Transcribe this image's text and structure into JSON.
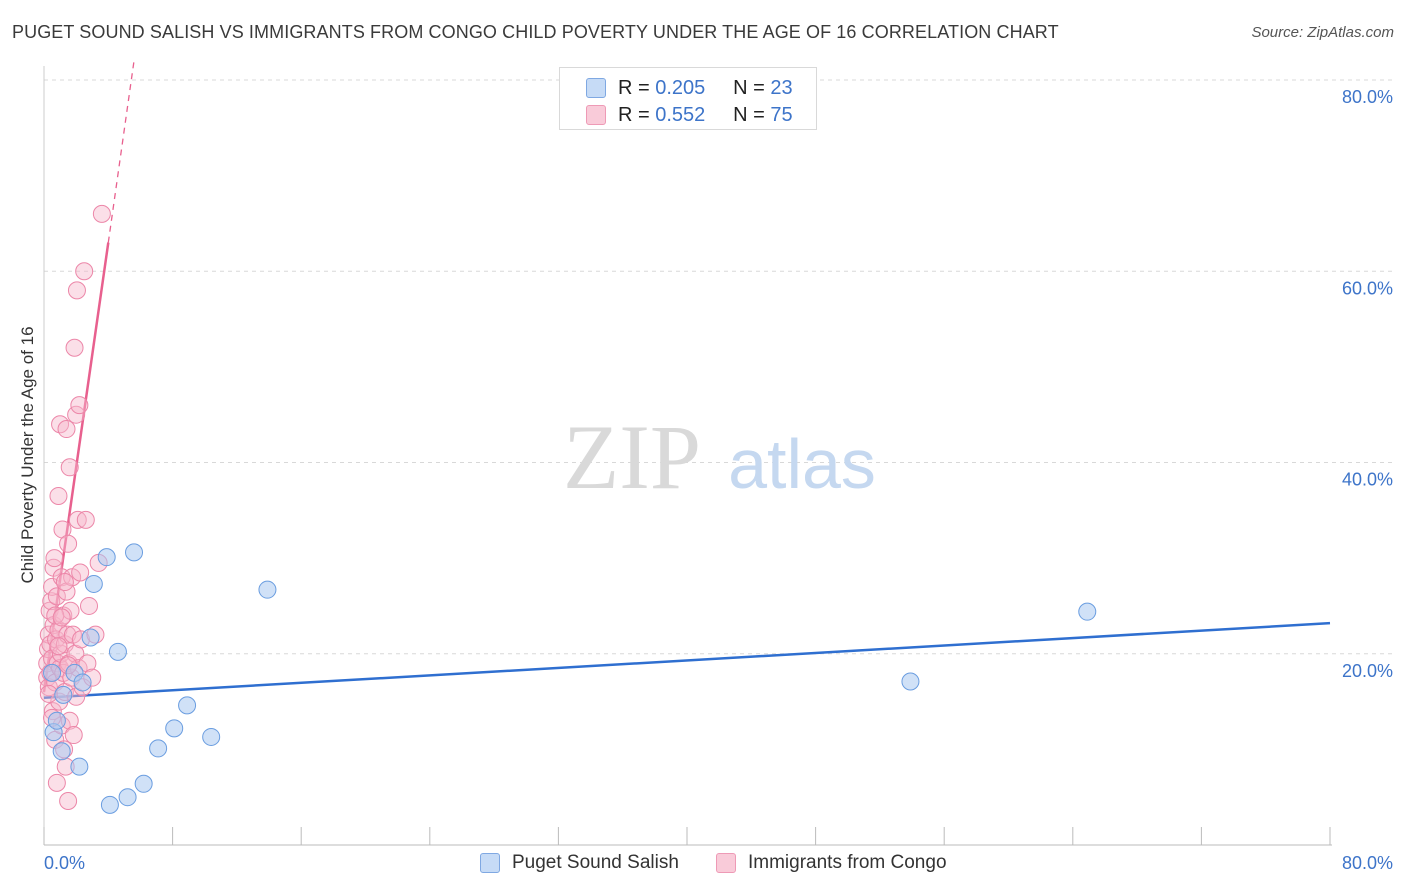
{
  "title": "PUGET SOUND SALISH VS IMMIGRANTS FROM CONGO CHILD POVERTY UNDER THE AGE OF 16 CORRELATION CHART",
  "source": "Source: ZipAtlas.com",
  "watermark": {
    "zip": "ZIP",
    "atlas": "atlas"
  },
  "legend": {
    "r_label": "R =",
    "n_label": "N =",
    "rows": [
      {
        "series": "Puget Sound Salish",
        "r": "0.205",
        "n": "23"
      },
      {
        "series": "Immigrants from Congo",
        "r": "0.552",
        "n": "75"
      }
    ]
  },
  "colors": {
    "blue_fill": "#aac8f0",
    "blue_stroke": "#6a9de0",
    "blue_line": "#2f6fd0",
    "pink_fill": "#f6b8cc",
    "pink_stroke": "#ec86a8",
    "pink_line": "#e8608e",
    "accent_text": "#3d74c9",
    "grid": "#d8d8d8"
  },
  "chart_data": {
    "type": "scatter",
    "title": "PUGET SOUND SALISH VS IMMIGRANTS FROM CONGO CHILD POVERTY UNDER THE AGE OF 16 CORRELATION CHART",
    "xlabel": "",
    "ylabel": "Child Poverty Under the Age of 16",
    "xlim": [
      0,
      80
    ],
    "ylim": [
      0,
      80
    ],
    "x_tick_labels": [
      "0.0%",
      "80.0%"
    ],
    "y_ticks": [
      20,
      40,
      60,
      80
    ],
    "y_tick_labels": [
      "20.0%",
      "40.0%",
      "60.0%",
      "80.0%"
    ],
    "grid": true,
    "series": [
      {
        "name": "Puget Sound Salish",
        "color": "blue",
        "points": [
          [
            0.5,
            18.0
          ],
          [
            0.6,
            11.8
          ],
          [
            0.8,
            13.0
          ],
          [
            1.1,
            9.8
          ],
          [
            1.2,
            15.7
          ],
          [
            1.9,
            18.0
          ],
          [
            2.2,
            8.2
          ],
          [
            2.4,
            17.0
          ],
          [
            2.9,
            21.7
          ],
          [
            3.1,
            27.3
          ],
          [
            3.9,
            30.1
          ],
          [
            4.1,
            4.2
          ],
          [
            4.6,
            20.2
          ],
          [
            5.2,
            5.0
          ],
          [
            5.6,
            30.6
          ],
          [
            6.2,
            6.4
          ],
          [
            7.1,
            10.1
          ],
          [
            8.1,
            12.2
          ],
          [
            8.9,
            14.6
          ],
          [
            10.4,
            11.3
          ],
          [
            13.9,
            26.7
          ],
          [
            53.9,
            17.1
          ],
          [
            64.9,
            24.4
          ]
        ],
        "trend": {
          "x": [
            0,
            80
          ],
          "y": [
            15.4,
            23.2
          ],
          "style": "solid"
        }
      },
      {
        "name": "Immigrants from Congo",
        "color": "pink",
        "points": [
          [
            0.2,
            17.5
          ],
          [
            0.2,
            19.0
          ],
          [
            0.25,
            20.5
          ],
          [
            0.3,
            22.0
          ],
          [
            0.3,
            16.5
          ],
          [
            0.35,
            24.5
          ],
          [
            0.4,
            18.0
          ],
          [
            0.4,
            21.0
          ],
          [
            0.45,
            25.5
          ],
          [
            0.5,
            27.0
          ],
          [
            0.5,
            19.5
          ],
          [
            0.55,
            14.0
          ],
          [
            0.6,
            23.0
          ],
          [
            0.6,
            29.0
          ],
          [
            0.65,
            30.0
          ],
          [
            0.7,
            11.0
          ],
          [
            0.7,
            17.0
          ],
          [
            0.75,
            21.5
          ],
          [
            0.8,
            6.5
          ],
          [
            0.8,
            26.0
          ],
          [
            0.85,
            19.0
          ],
          [
            0.9,
            22.5
          ],
          [
            0.9,
            36.5
          ],
          [
            0.95,
            15.0
          ],
          [
            1.0,
            18.5
          ],
          [
            1.0,
            44.0
          ],
          [
            1.05,
            20.0
          ],
          [
            1.1,
            28.0
          ],
          [
            1.1,
            12.5
          ],
          [
            1.15,
            33.0
          ],
          [
            1.2,
            24.0
          ],
          [
            1.2,
            18.0
          ],
          [
            1.25,
            10.0
          ],
          [
            1.3,
            21.0
          ],
          [
            1.3,
            16.0
          ],
          [
            1.35,
            8.2
          ],
          [
            1.4,
            26.5
          ],
          [
            1.4,
            43.5
          ],
          [
            1.45,
            22.0
          ],
          [
            1.5,
            4.6
          ],
          [
            1.5,
            31.5
          ],
          [
            1.55,
            19.0
          ],
          [
            1.6,
            39.5
          ],
          [
            1.6,
            13.0
          ],
          [
            1.65,
            24.5
          ],
          [
            1.7,
            17.5
          ],
          [
            1.75,
            28.0
          ],
          [
            1.8,
            22.0
          ],
          [
            1.85,
            11.5
          ],
          [
            1.9,
            52.0
          ],
          [
            1.95,
            20.0
          ],
          [
            2.0,
            45.0
          ],
          [
            2.0,
            15.5
          ],
          [
            2.05,
            58.0
          ],
          [
            2.1,
            34.0
          ],
          [
            2.15,
            18.5
          ],
          [
            2.2,
            46.0
          ],
          [
            2.25,
            28.5
          ],
          [
            2.3,
            21.5
          ],
          [
            2.4,
            16.5
          ],
          [
            2.5,
            60.0
          ],
          [
            2.6,
            34.0
          ],
          [
            2.7,
            19.0
          ],
          [
            2.8,
            25.0
          ],
          [
            3.0,
            17.5
          ],
          [
            3.2,
            22.0
          ],
          [
            3.4,
            29.5
          ],
          [
            3.6,
            66.0
          ],
          [
            0.3,
            15.8
          ],
          [
            0.5,
            13.3
          ],
          [
            0.7,
            24.0
          ],
          [
            0.9,
            20.8
          ],
          [
            1.1,
            23.8
          ],
          [
            1.3,
            27.5
          ],
          [
            1.5,
            18.8
          ]
        ],
        "trend": {
          "x": [
            0,
            4.0
          ],
          "y": [
            16.0,
            63.0
          ],
          "style": "solid",
          "extension": {
            "x": [
              4.0,
              5.6
            ],
            "y": [
              63.0,
              82.0
            ],
            "style": "dashed"
          }
        }
      }
    ]
  }
}
